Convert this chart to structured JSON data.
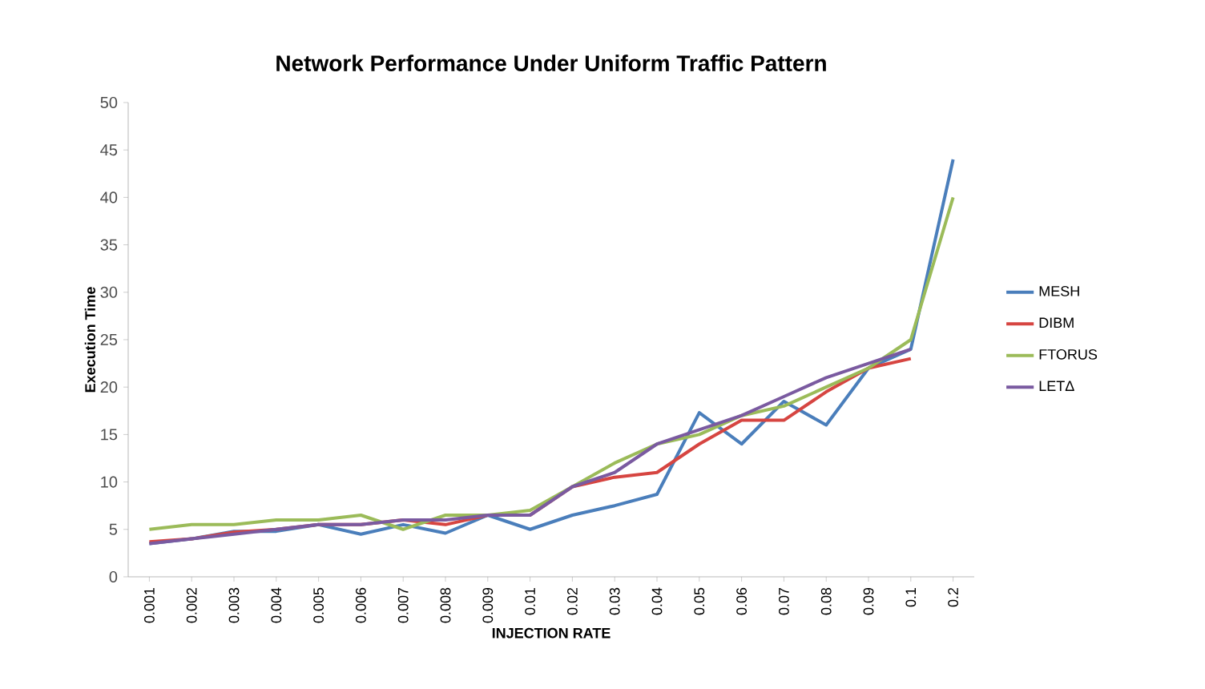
{
  "chart_data": {
    "type": "line",
    "title": "Network Performance Under Uniform Traffic Pattern",
    "xlabel": "INJECTION RATE",
    "ylabel": "Execution Time",
    "categories": [
      "0.001",
      "0.002",
      "0.003",
      "0.004",
      "0.005",
      "0.006",
      "0.007",
      "0.008",
      "0.009",
      "0.01",
      "0.02",
      "0.03",
      "0.04",
      "0.05",
      "0.06",
      "0.07",
      "0.08",
      "0.09",
      "0.1",
      "0.2"
    ],
    "series": [
      {
        "name": "MESH",
        "color": "#4a7ebb",
        "values": [
          3.5,
          4,
          4.8,
          4.8,
          5.5,
          4.5,
          5.5,
          4.6,
          6.5,
          5,
          6.5,
          7.5,
          8.7,
          17.3,
          14,
          18.5,
          16,
          22,
          24,
          44
        ]
      },
      {
        "name": "DIBM",
        "color": "#d64541",
        "values": [
          3.7,
          4,
          4.7,
          5,
          5.5,
          5.5,
          6,
          5.5,
          6.5,
          6.5,
          9.5,
          10.5,
          11,
          14,
          16.5,
          16.5,
          19.5,
          22,
          23,
          null
        ]
      },
      {
        "name": "FTORUS",
        "color": "#9bbb59",
        "values": [
          5,
          5.5,
          5.5,
          6,
          6,
          6.5,
          5,
          6.5,
          6.5,
          7,
          9.5,
          12,
          14,
          15,
          17,
          18,
          20,
          22,
          25,
          40
        ]
      },
      {
        "name": "LETΔ",
        "color": "#7a5aa0",
        "values": [
          3.5,
          4,
          4.5,
          5,
          5.5,
          5.5,
          6,
          6,
          6.5,
          6.5,
          9.5,
          11,
          14,
          15.5,
          17,
          19,
          21,
          22.5,
          24,
          null
        ]
      }
    ],
    "ylim": [
      0,
      50
    ],
    "yticks": [
      0,
      5,
      10,
      15,
      20,
      25,
      30,
      35,
      40,
      45,
      50
    ],
    "legend": "right",
    "grid": false,
    "marker": "none",
    "line_style": "solid"
  }
}
